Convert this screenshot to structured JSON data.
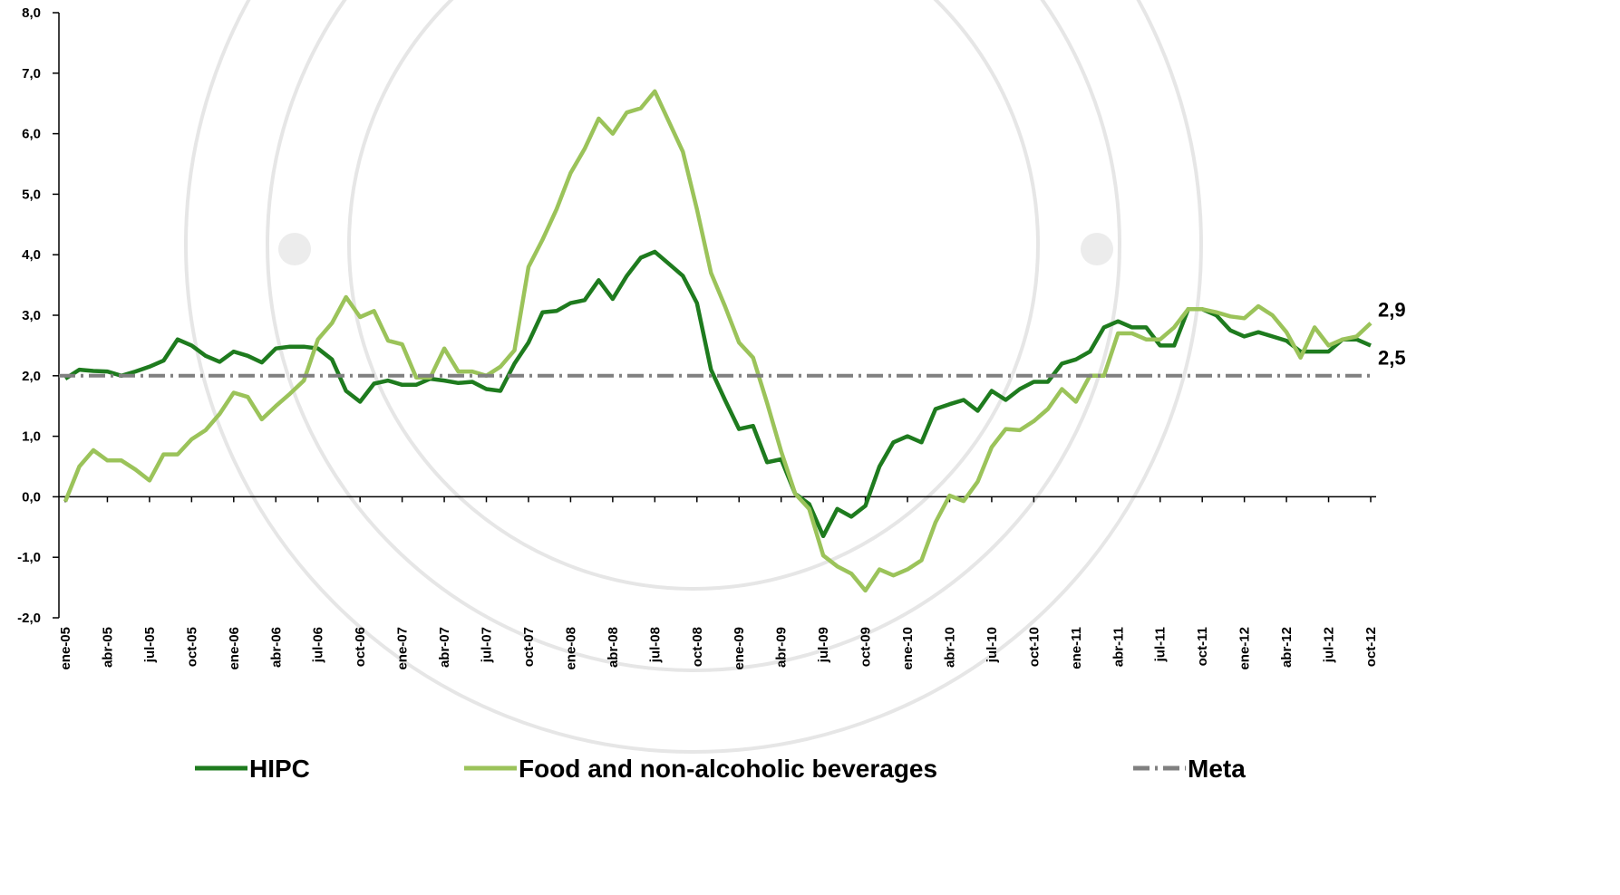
{
  "chart_data": {
    "type": "line",
    "categories": [
      "ene-05",
      null,
      null,
      "abr-05",
      null,
      null,
      "jul-05",
      null,
      null,
      "oct-05",
      null,
      null,
      "ene-06",
      null,
      null,
      "abr-06",
      null,
      null,
      "jul-06",
      null,
      null,
      "oct-06",
      null,
      null,
      "ene-07",
      null,
      null,
      "abr-07",
      null,
      null,
      "jul-07",
      null,
      null,
      "oct-07",
      null,
      null,
      "ene-08",
      null,
      null,
      "abr-08",
      null,
      null,
      "jul-08",
      null,
      null,
      "oct-08",
      null,
      null,
      "ene-09",
      null,
      null,
      "abr-09",
      null,
      null,
      "jul-09",
      null,
      null,
      "oct-09",
      null,
      null,
      "ene-10",
      null,
      null,
      "abr-10",
      null,
      null,
      "jul-10",
      null,
      null,
      "oct-10",
      null,
      null,
      "ene-11",
      null,
      null,
      "abr-11",
      null,
      null,
      "jul-11",
      null,
      null,
      "oct-11",
      null,
      null,
      "ene-12",
      null,
      null,
      "abr-12",
      null,
      null,
      "jul-12",
      null,
      null,
      "oct-12"
    ],
    "series": [
      {
        "name": "HIPC",
        "color": "#1e7b1e",
        "end_label": "2,5",
        "values": [
          1.95,
          2.1,
          2.08,
          2.07,
          2.0,
          2.07,
          2.15,
          2.25,
          2.6,
          2.5,
          2.33,
          2.23,
          2.4,
          2.33,
          2.22,
          2.45,
          2.48,
          2.48,
          2.45,
          2.27,
          1.75,
          1.57,
          1.87,
          1.92,
          1.85,
          1.85,
          1.95,
          1.92,
          1.88,
          1.9,
          1.78,
          1.75,
          2.2,
          2.55,
          3.05,
          3.07,
          3.2,
          3.25,
          3.58,
          3.27,
          3.65,
          3.95,
          4.05,
          3.85,
          3.65,
          3.2,
          2.1,
          1.6,
          1.12,
          1.17,
          0.57,
          0.62,
          0.05,
          -0.12,
          -0.65,
          -0.2,
          -0.33,
          -0.15,
          0.5,
          0.9,
          1.0,
          0.9,
          1.45,
          1.53,
          1.6,
          1.42,
          1.75,
          1.6,
          1.78,
          1.9,
          1.9,
          2.2,
          2.27,
          2.4,
          2.8,
          2.9,
          2.8,
          2.8,
          2.5,
          2.5,
          3.1,
          3.1,
          3.0,
          2.75,
          2.65,
          2.72,
          2.65,
          2.58,
          2.4,
          2.4,
          2.4,
          2.6,
          2.6,
          2.5
        ]
      },
      {
        "name": "Food and non-alcoholic beverages",
        "color": "#9bc35a",
        "end_label": "2,9",
        "values": [
          -0.08,
          0.5,
          0.77,
          0.6,
          0.6,
          0.45,
          0.27,
          0.7,
          0.7,
          0.95,
          1.1,
          1.37,
          1.72,
          1.65,
          1.28,
          1.5,
          1.7,
          1.92,
          2.6,
          2.87,
          3.3,
          2.97,
          3.07,
          2.58,
          2.52,
          1.97,
          1.97,
          2.45,
          2.07,
          2.07,
          2.0,
          2.15,
          2.42,
          3.8,
          4.25,
          4.75,
          5.35,
          5.75,
          6.25,
          6.0,
          6.35,
          6.42,
          6.7,
          6.2,
          5.7,
          4.75,
          3.7,
          3.15,
          2.55,
          2.3,
          1.55,
          0.75,
          0.05,
          -0.2,
          -0.97,
          -1.15,
          -1.27,
          -1.55,
          -1.2,
          -1.3,
          -1.2,
          -1.05,
          -0.42,
          0.02,
          -0.07,
          0.25,
          0.82,
          1.12,
          1.1,
          1.25,
          1.45,
          1.78,
          1.57,
          2.0,
          2.0,
          2.7,
          2.7,
          2.6,
          2.6,
          2.8,
          3.1,
          3.1,
          3.05,
          2.98,
          2.95,
          3.15,
          3.0,
          2.72,
          2.3,
          2.8,
          2.5,
          2.6,
          2.65,
          2.87
        ]
      },
      {
        "name": "Meta",
        "color": "#808080",
        "style": "dash-dot",
        "value": 2
      }
    ],
    "ylim": [
      -2,
      8
    ],
    "yticks": [
      {
        "value": -2,
        "label": "-2,0"
      },
      {
        "value": -1,
        "label": "-1,0"
      },
      {
        "value": 0,
        "label": "0,0"
      },
      {
        "value": 1,
        "label": "1,0"
      },
      {
        "value": 2,
        "label": "2,0"
      },
      {
        "value": 3,
        "label": "3,0"
      },
      {
        "value": 4,
        "label": "4,0"
      },
      {
        "value": 5,
        "label": "5,0"
      },
      {
        "value": 6,
        "label": "6,0"
      },
      {
        "value": 7,
        "label": "7,0"
      },
      {
        "value": 8,
        "label": "8,0"
      }
    ],
    "legend": "bottom"
  }
}
